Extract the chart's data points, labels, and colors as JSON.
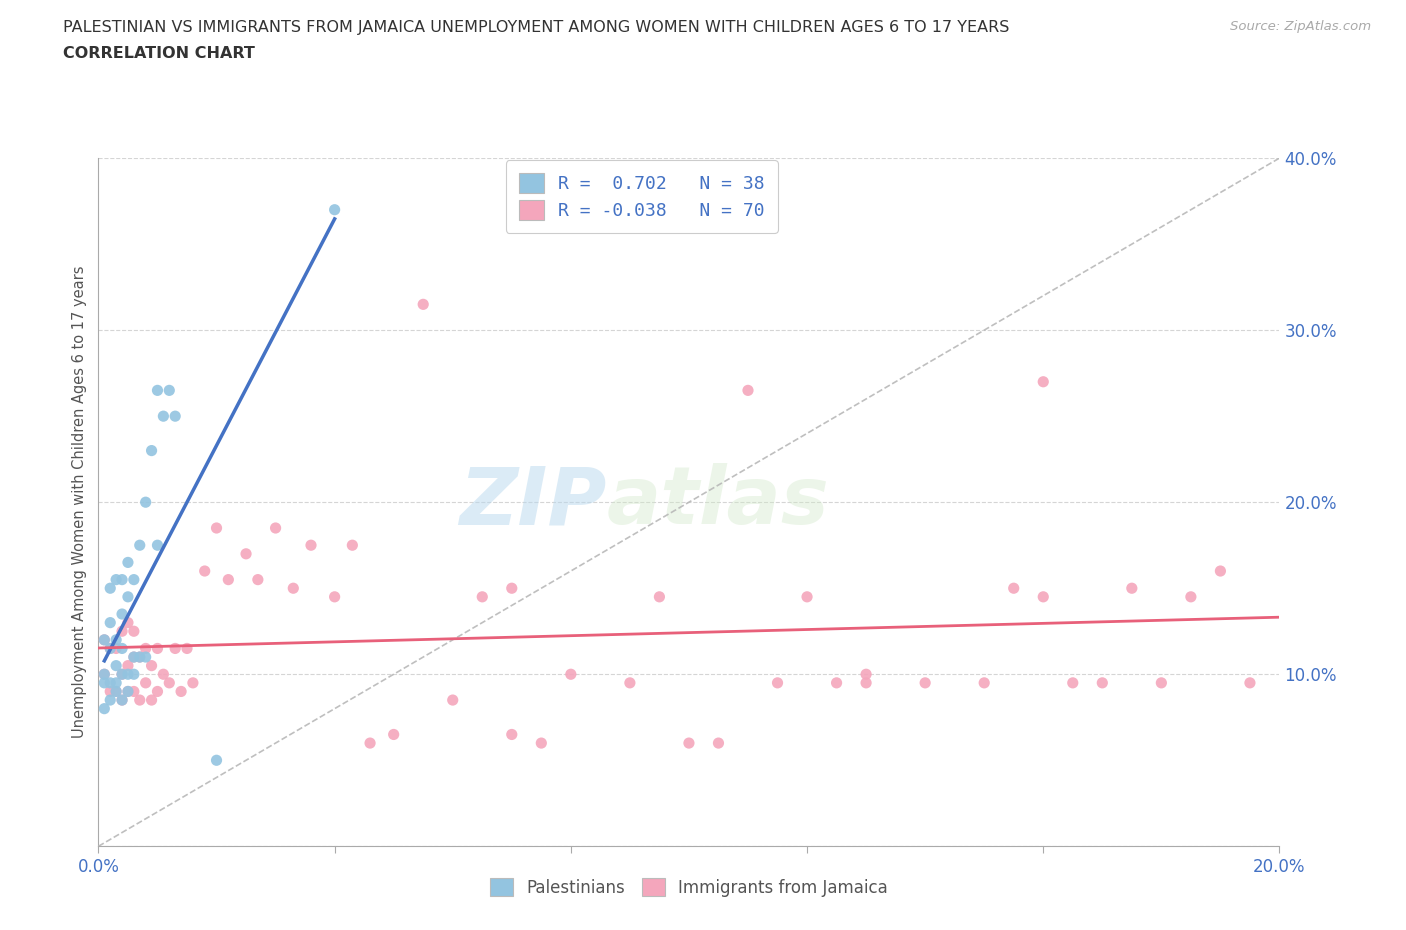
{
  "title_line1": "PALESTINIAN VS IMMIGRANTS FROM JAMAICA UNEMPLOYMENT AMONG WOMEN WITH CHILDREN AGES 6 TO 17 YEARS",
  "title_line2": "CORRELATION CHART",
  "source_text": "Source: ZipAtlas.com",
  "ylabel": "Unemployment Among Women with Children Ages 6 to 17 years",
  "xlim": [
    0.0,
    0.2
  ],
  "ylim": [
    0.0,
    0.4
  ],
  "xticks": [
    0.0,
    0.04,
    0.08,
    0.12,
    0.16,
    0.2
  ],
  "yticks": [
    0.0,
    0.1,
    0.2,
    0.3,
    0.4
  ],
  "blue_color": "#93c4e0",
  "pink_color": "#f4a6bc",
  "blue_line_color": "#4472c4",
  "pink_line_color": "#e8607a",
  "watermark_text": "ZIPatlas",
  "legend_label1": "Palestinians",
  "legend_label2": "Immigrants from Jamaica",
  "legend_r1": "R =  0.702   N = 38",
  "legend_r2": "R = -0.038   N = 70",
  "blue_dots_x": [
    0.001,
    0.001,
    0.001,
    0.001,
    0.002,
    0.002,
    0.002,
    0.002,
    0.002,
    0.003,
    0.003,
    0.003,
    0.003,
    0.003,
    0.004,
    0.004,
    0.004,
    0.004,
    0.004,
    0.005,
    0.005,
    0.005,
    0.005,
    0.006,
    0.006,
    0.006,
    0.007,
    0.007,
    0.008,
    0.008,
    0.009,
    0.01,
    0.01,
    0.011,
    0.012,
    0.013,
    0.04,
    0.02
  ],
  "blue_dots_y": [
    0.08,
    0.095,
    0.1,
    0.12,
    0.085,
    0.095,
    0.115,
    0.13,
    0.15,
    0.09,
    0.095,
    0.105,
    0.12,
    0.155,
    0.085,
    0.1,
    0.115,
    0.135,
    0.155,
    0.09,
    0.1,
    0.145,
    0.165,
    0.1,
    0.11,
    0.155,
    0.11,
    0.175,
    0.11,
    0.2,
    0.23,
    0.175,
    0.265,
    0.25,
    0.265,
    0.25,
    0.37,
    0.05
  ],
  "pink_dots_x": [
    0.001,
    0.001,
    0.002,
    0.002,
    0.003,
    0.003,
    0.004,
    0.004,
    0.004,
    0.005,
    0.005,
    0.005,
    0.006,
    0.006,
    0.006,
    0.007,
    0.007,
    0.008,
    0.008,
    0.009,
    0.009,
    0.01,
    0.01,
    0.011,
    0.012,
    0.013,
    0.014,
    0.015,
    0.016,
    0.018,
    0.02,
    0.022,
    0.025,
    0.027,
    0.03,
    0.033,
    0.036,
    0.04,
    0.043,
    0.046,
    0.05,
    0.055,
    0.06,
    0.065,
    0.07,
    0.075,
    0.08,
    0.09,
    0.095,
    0.1,
    0.105,
    0.11,
    0.115,
    0.12,
    0.125,
    0.13,
    0.14,
    0.15,
    0.155,
    0.16,
    0.165,
    0.17,
    0.175,
    0.18,
    0.185,
    0.19,
    0.195,
    0.07,
    0.13,
    0.16
  ],
  "pink_dots_y": [
    0.1,
    0.12,
    0.09,
    0.115,
    0.09,
    0.115,
    0.085,
    0.1,
    0.125,
    0.09,
    0.105,
    0.13,
    0.09,
    0.11,
    0.125,
    0.085,
    0.11,
    0.095,
    0.115,
    0.085,
    0.105,
    0.09,
    0.115,
    0.1,
    0.095,
    0.115,
    0.09,
    0.115,
    0.095,
    0.16,
    0.185,
    0.155,
    0.17,
    0.155,
    0.185,
    0.15,
    0.175,
    0.145,
    0.175,
    0.06,
    0.065,
    0.315,
    0.085,
    0.145,
    0.065,
    0.06,
    0.1,
    0.095,
    0.145,
    0.06,
    0.06,
    0.265,
    0.095,
    0.145,
    0.095,
    0.1,
    0.095,
    0.095,
    0.15,
    0.27,
    0.095,
    0.095,
    0.15,
    0.095,
    0.145,
    0.16,
    0.095,
    0.15,
    0.095,
    0.145
  ]
}
